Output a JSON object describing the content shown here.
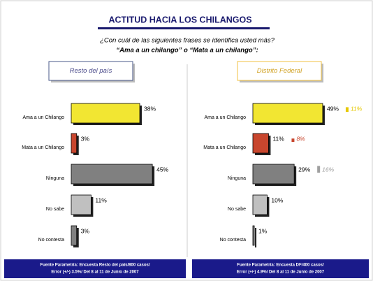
{
  "header": {
    "title": "ACTITUD HACIA LOS CHILANGOS",
    "question": [
      "¿Con cuál de las siguientes frases se identifica usted más?",
      "“Ama a un chilango” o “Mata a un chilango”:"
    ]
  },
  "chart_data": [
    {
      "type": "bar",
      "title": "Resto del país",
      "categories": [
        "Ama a un Chilango",
        "Mata a un Chilango",
        "Ninguna",
        "No sabe",
        "No contesta"
      ],
      "values": [
        38,
        3,
        45,
        11,
        3
      ],
      "value_labels": [
        "38%",
        "3%",
        "45%",
        "11%",
        "3%"
      ],
      "colors": [
        "#f2e632",
        "#c8462e",
        "#808080",
        "#c0c0c0",
        "#808080"
      ],
      "source": [
        "Fuente Parametría: Encuesta Resto del país/800 casos/",
        "Error (+/-) 3.5%/ Del 8 al 11 de Junio de 2007"
      ]
    },
    {
      "type": "bar",
      "title": "Distrito Federal",
      "categories": [
        "Ama a un Chilango",
        "Mata a un Chilango",
        "Ninguna",
        "No sabe",
        "No contesta"
      ],
      "values": [
        49,
        11,
        29,
        10,
        1
      ],
      "value_labels": [
        "49%",
        "11%",
        "29%",
        "10%",
        "1%"
      ],
      "colors": [
        "#f2e632",
        "#c8462e",
        "#808080",
        "#c0c0c0",
        "#808080"
      ],
      "difference": {
        "values": [
          11,
          8,
          16,
          null,
          null
        ],
        "value_labels": [
          "11%",
          "8%",
          "16%",
          null,
          null
        ],
        "colors": [
          "#e6c800",
          "#c8462e",
          "#a0a0a0",
          null,
          null
        ]
      },
      "source": [
        "Fuente Parametría: Encuesta DF/400 casos/",
        "Error (+/-) 4.9%/ Del 8 al 11 de Junio de 2007"
      ]
    }
  ]
}
